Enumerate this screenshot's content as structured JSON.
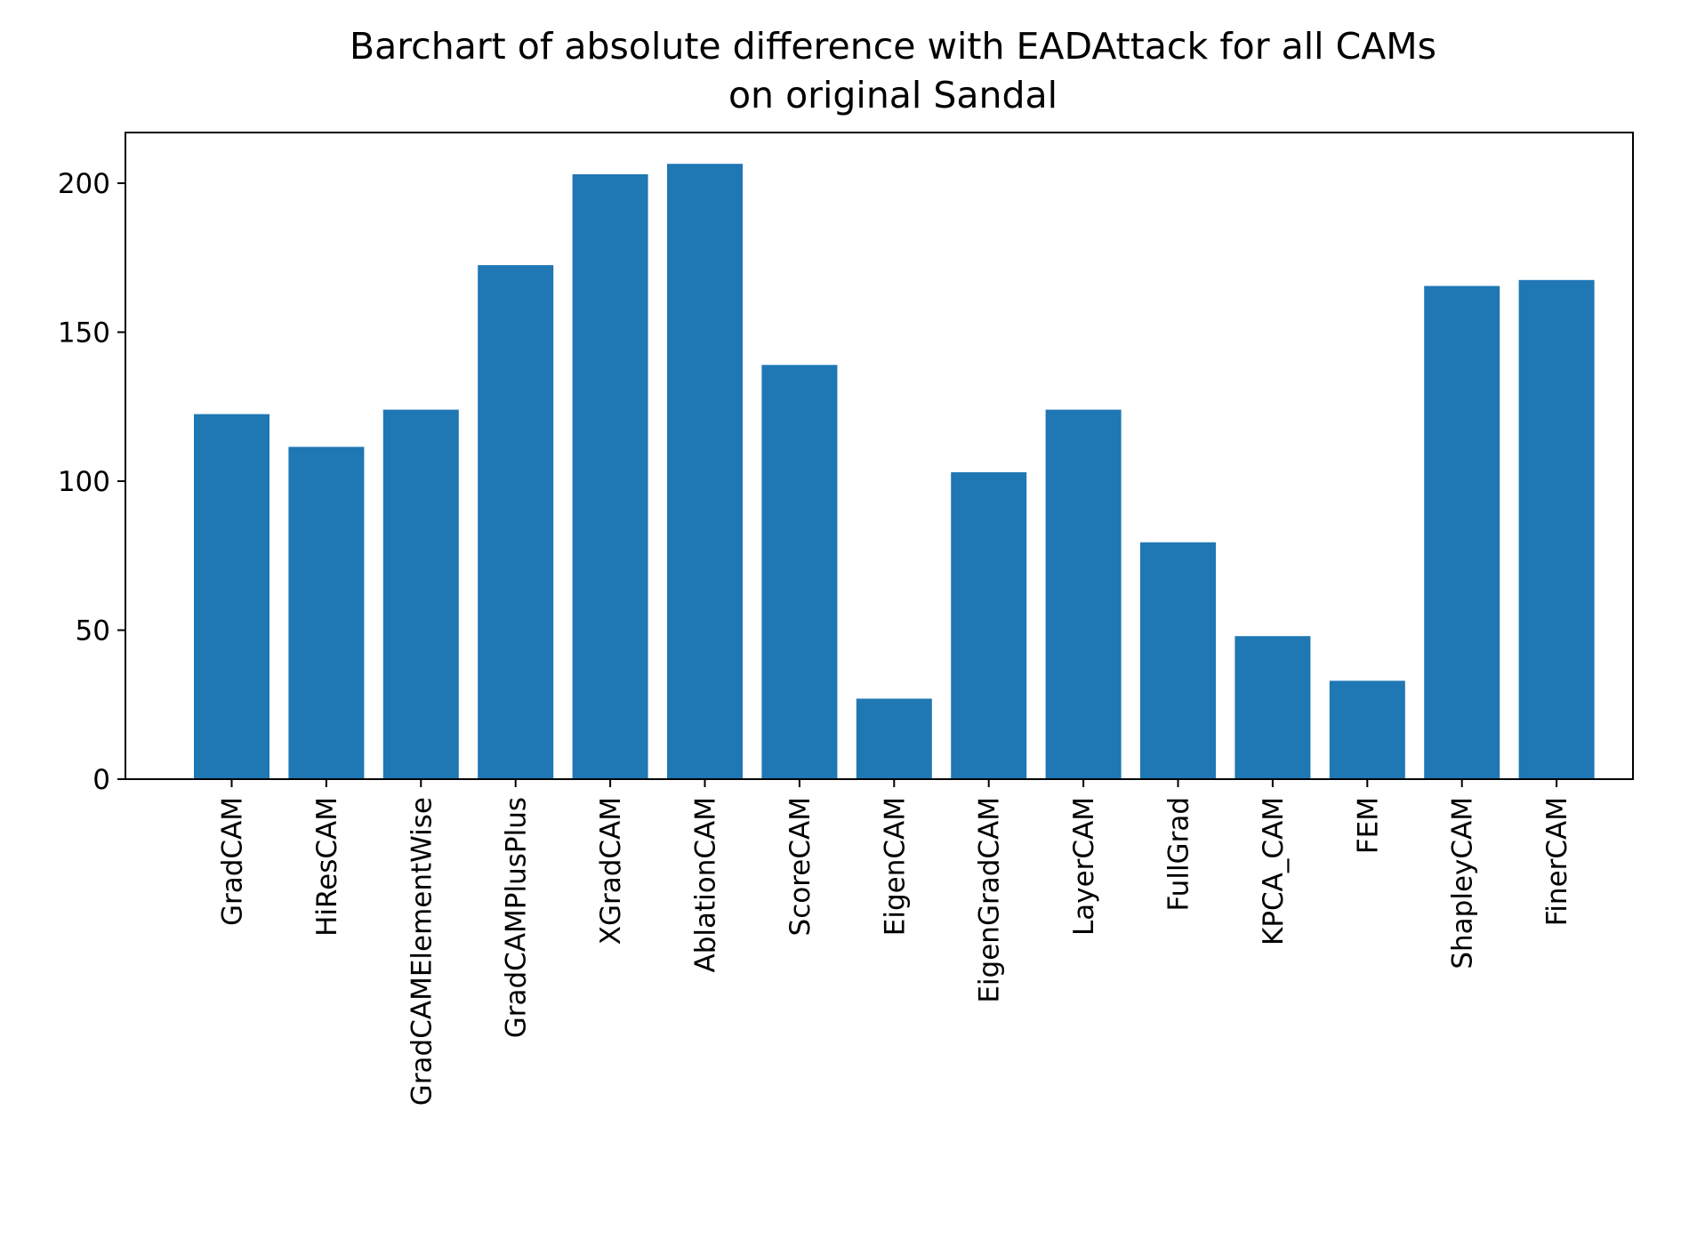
{
  "chart_data": {
    "type": "bar",
    "title": [
      "Barchart of absolute difference with EADAttack for all CAMs",
      "on original Sandal"
    ],
    "xlabel": "",
    "ylabel": "",
    "categories": [
      "GradCAM",
      "HiResCAM",
      "GradCAMElementWise",
      "GradCAMPlusPlus",
      "XGradCAM",
      "AblationCAM",
      "ScoreCAM",
      "EigenCAM",
      "EigenGradCAM",
      "LayerCAM",
      "FullGrad",
      "KPCA_CAM",
      "FEM",
      "ShapleyCAM",
      "FinerCAM"
    ],
    "values": [
      122.5,
      111.5,
      124.0,
      172.5,
      203.0,
      206.5,
      139.0,
      27.0,
      103.0,
      124.0,
      79.5,
      48.0,
      33.0,
      165.5,
      167.5
    ],
    "ylim": [
      0,
      217
    ],
    "yticks": [
      0,
      50,
      100,
      150,
      200
    ],
    "bar_color": "#1f77b4",
    "grid": false,
    "legend": "none"
  }
}
